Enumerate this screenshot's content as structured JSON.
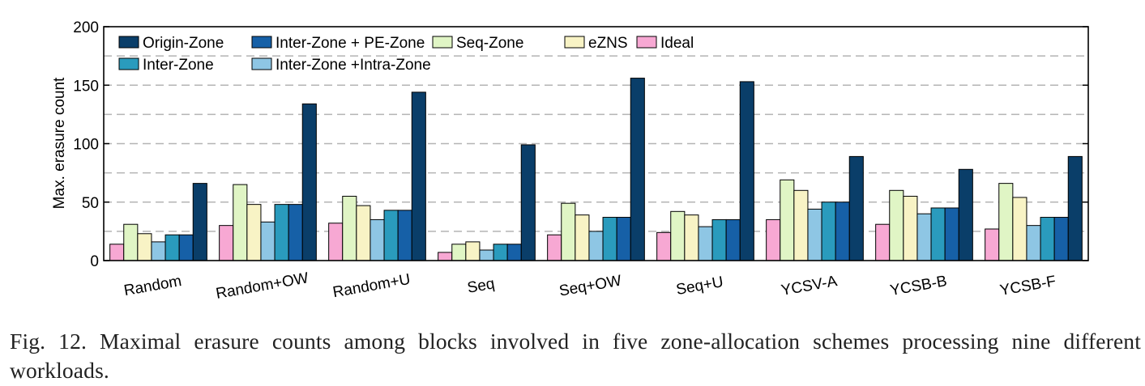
{
  "figure": {
    "caption": "Fig. 12. Maximal erasure counts among blocks involved in five zone-allocation schemes processing nine different workloads."
  },
  "chart_data": {
    "type": "bar",
    "title": "",
    "xlabel": "",
    "ylabel": "Max. erasure count",
    "ylim": [
      0,
      200
    ],
    "yticks": [
      0,
      50,
      100,
      150,
      200
    ],
    "grid": "horizontal dashed",
    "legend_position": "top-left, inside plot",
    "categories": [
      "Random",
      "Random+OW",
      "Random+U",
      "Seq",
      "Seq+OW",
      "Seq+U",
      "YCSV-A",
      "YCSB-B",
      "YCSB-F"
    ],
    "series": [
      {
        "name": "Ideal",
        "color": "#f7a8d3",
        "values": [
          14,
          30,
          32,
          7,
          22,
          24,
          35,
          31,
          27
        ]
      },
      {
        "name": "Seq-Zone",
        "color": "#e0f5c5",
        "values": [
          31,
          65,
          55,
          14,
          49,
          42,
          69,
          60,
          66
        ]
      },
      {
        "name": "eZNS",
        "color": "#f8f3c5",
        "values": [
          23,
          48,
          47,
          16,
          39,
          39,
          60,
          55,
          54
        ]
      },
      {
        "name": "Inter-Zone +Intra-Zone",
        "color": "#8ec6e4",
        "values": [
          16,
          33,
          35,
          9,
          25,
          29,
          44,
          40,
          30
        ]
      },
      {
        "name": "Inter-Zone",
        "color": "#2a9bbd",
        "values": [
          22,
          48,
          43,
          14,
          37,
          35,
          50,
          45,
          37
        ]
      },
      {
        "name": "Inter-Zone + PE-Zone",
        "color": "#1660a7",
        "values": [
          22,
          48,
          43,
          14,
          37,
          35,
          50,
          45,
          37
        ]
      },
      {
        "name": "Origin-Zone",
        "color": "#0a3e69",
        "values": [
          66,
          134,
          144,
          99,
          156,
          153,
          89,
          78,
          89
        ]
      }
    ],
    "legend_rows": [
      [
        "Origin-Zone",
        "Inter-Zone + PE-Zone",
        "Seq-Zone",
        "eZNS",
        "Ideal"
      ],
      [
        "Inter-Zone",
        "Inter-Zone +Intra-Zone"
      ]
    ]
  }
}
